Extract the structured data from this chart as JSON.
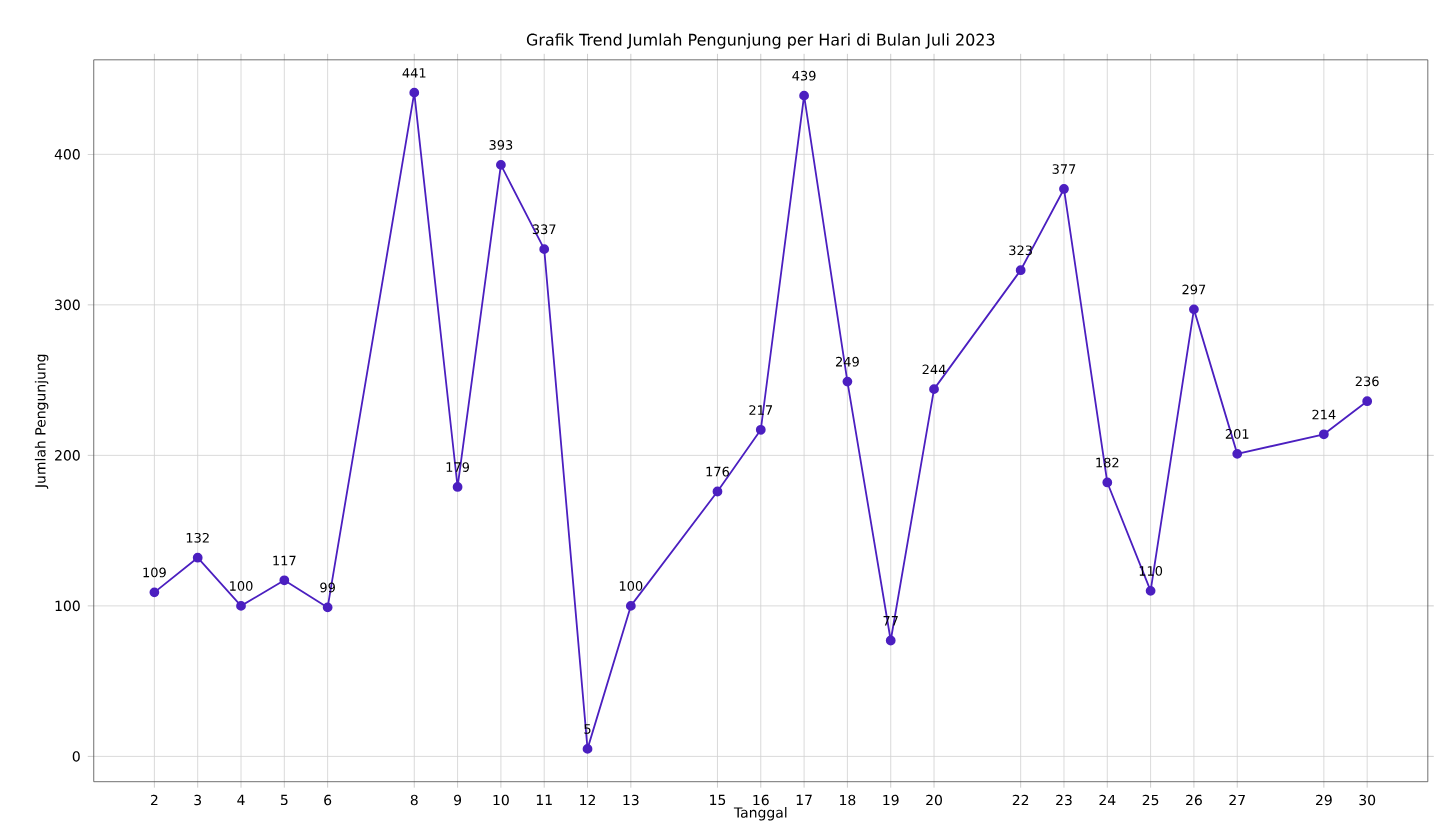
{
  "chart_data": {
    "type": "line",
    "title": "Grafik Trend Jumlah Pengunjung per Hari di Bulan Juli 2023",
    "xlabel": "Tanggal",
    "ylabel": "Jumlah Pengunjung",
    "x": [
      2,
      3,
      4,
      5,
      6,
      8,
      9,
      10,
      11,
      12,
      13,
      15,
      16,
      17,
      18,
      19,
      20,
      22,
      23,
      24,
      25,
      26,
      27,
      29,
      30
    ],
    "series": [
      {
        "color": "#4b1fc0",
        "values": [
          109,
          132,
          100,
          117,
          99,
          441,
          179,
          393,
          337,
          5,
          100,
          176,
          217,
          439,
          249,
          77,
          244,
          323,
          377,
          182,
          110,
          297,
          201,
          214,
          236
        ]
      }
    ],
    "xlim": [
      0.6,
      31.4
    ],
    "ylim": [
      -16.8,
      462.8
    ],
    "xticks": [
      2,
      3,
      4,
      5,
      6,
      8,
      9,
      10,
      11,
      12,
      13,
      15,
      16,
      17,
      18,
      19,
      20,
      22,
      23,
      24,
      25,
      26,
      27,
      29,
      30
    ],
    "yticks": [
      0,
      100,
      200,
      300,
      400
    ],
    "grid": true,
    "marker": "circle",
    "line_style": "solid",
    "data_labels": true
  }
}
